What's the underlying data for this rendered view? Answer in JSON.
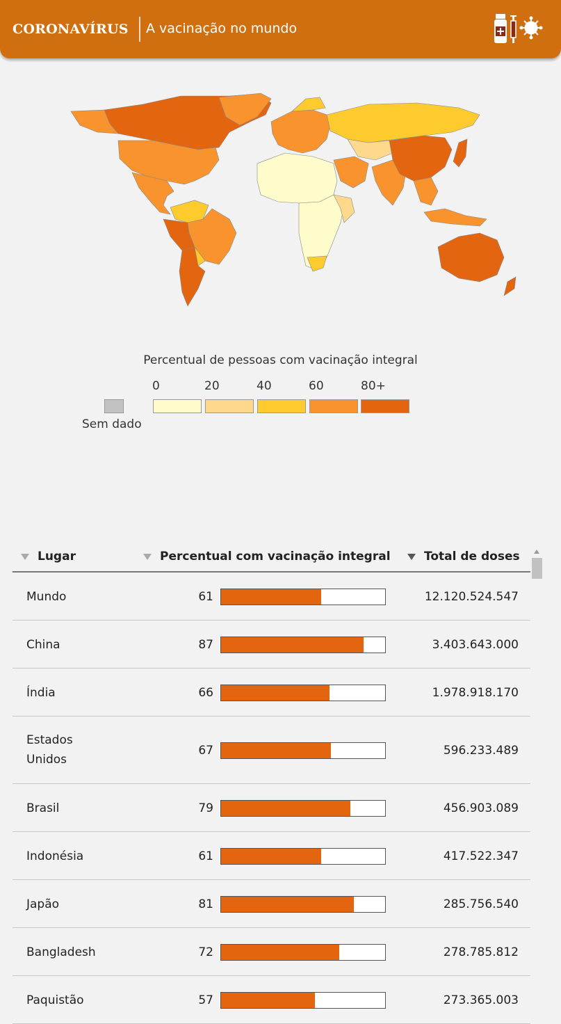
{
  "header": {
    "brand": "CORONAVÍRUS",
    "title": "A vacinação no mundo",
    "icons": [
      "vaccine-bottle-icon",
      "syringe-icon",
      "virus-icon"
    ]
  },
  "legend": {
    "title": "Percentual de pessoas com vacinação integral",
    "ticks": [
      "0",
      "20",
      "40",
      "60",
      "80+"
    ],
    "colors": [
      "#fffccc",
      "#fed98d",
      "#fecb2f",
      "#f9932d",
      "#e4650f"
    ],
    "no_data_label": "Sem dado",
    "no_data_color": "#c2c2c2"
  },
  "table": {
    "headers": {
      "place": "Lugar",
      "percent": "Percentual com vacinação integral",
      "doses": "Total de doses"
    },
    "sorted_by": "Total de doses",
    "rows": [
      {
        "name": "Mundo",
        "pct": "61",
        "pct_value": 61,
        "doses": "12.120.524.547"
      },
      {
        "name": "China",
        "pct": "87",
        "pct_value": 87,
        "doses": "3.403.643.000"
      },
      {
        "name": "Índia",
        "pct": "66",
        "pct_value": 66,
        "doses": "1.978.918.170"
      },
      {
        "name": "Estados Unidos",
        "pct": "67",
        "pct_value": 67,
        "doses": "596.233.489"
      },
      {
        "name": "Brasil",
        "pct": "79",
        "pct_value": 79,
        "doses": "456.903.089"
      },
      {
        "name": "Indonésia",
        "pct": "61",
        "pct_value": 61,
        "doses": "417.522.347"
      },
      {
        "name": "Japão",
        "pct": "81",
        "pct_value": 81,
        "doses": "285.756.540"
      },
      {
        "name": "Bangladesh",
        "pct": "72",
        "pct_value": 72,
        "doses": "278.785.812"
      },
      {
        "name": "Paquistão",
        "pct": "57",
        "pct_value": 57,
        "doses": "273.365.003"
      }
    ],
    "bar_color": "#e4650f"
  }
}
